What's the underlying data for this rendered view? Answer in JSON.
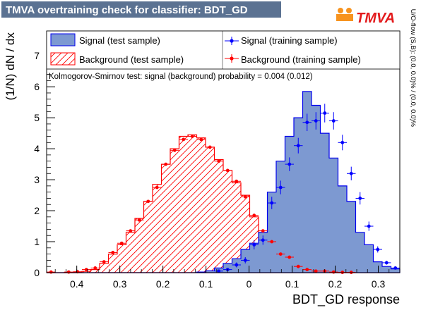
{
  "header": {
    "title": "TMVA overtraining check for classifier: BDT_GD",
    "logo_text": "TMVA"
  },
  "colors": {
    "title_bar": "#5b7292",
    "signal_fill": "#7d99d1",
    "signal_line": "#0000ee",
    "background_line": "#ff0000",
    "signal_points": "#0000ff",
    "background_points": "#ff0000",
    "logo_orange": "#f7931e",
    "logo_red": "#e31a1c"
  },
  "legend": {
    "signal_test": "Signal (test sample)",
    "background_test": "Background (test sample)",
    "signal_train": "Signal (training sample)",
    "background_train": "Background (training sample)"
  },
  "ks_text": "Kolmogorov-Smirnov test: signal (background) probability = 0.004 (0.012)",
  "overflow_text": "U/O-flow (S,B): (0.0, 0.0)% / (0.0, 0.0)%",
  "chart_data": {
    "type": "histogram",
    "title": "TMVA overtraining check for classifier: BDT_GD",
    "xlabel": "BDT_GD response",
    "ylabel": "(1/N) dN / dx",
    "xlim": [
      0.47,
      -0.35
    ],
    "ylim": [
      0,
      7.8
    ],
    "x_reversed": true,
    "xticks": [
      0.4,
      0.3,
      0.2,
      0.1,
      0,
      -0.1,
      -0.2,
      -0.3
    ],
    "xtick_labels": [
      "0.4",
      "0.3",
      "0.2",
      "0.1",
      "0",
      "0.1",
      "0.2",
      "0.3"
    ],
    "yticks": [
      0,
      1,
      2,
      3,
      4,
      5,
      6,
      7
    ],
    "bin_edges": [
      0.47,
      0.4495,
      0.429,
      0.4085,
      0.388,
      0.3675,
      0.347,
      0.3265,
      0.306,
      0.2855,
      0.265,
      0.2445,
      0.224,
      0.2035,
      0.183,
      0.1625,
      0.142,
      0.1215,
      0.101,
      0.0805,
      0.06,
      0.0395,
      0.019,
      -0.0015,
      -0.022,
      -0.0425,
      -0.063,
      -0.0835,
      -0.104,
      -0.1245,
      -0.145,
      -0.1655,
      -0.186,
      -0.2065,
      -0.227,
      -0.2475,
      -0.268,
      -0.2885,
      -0.309,
      -0.3295,
      -0.35
    ],
    "series": [
      {
        "name": "Signal (test sample)",
        "style": "filled",
        "values": [
          0,
          0,
          0,
          0,
          0,
          0,
          0,
          0,
          0,
          0,
          0,
          0,
          0,
          0,
          0,
          0,
          0,
          0.02,
          0.06,
          0.15,
          0.3,
          0.45,
          0.75,
          0.95,
          1.3,
          2.6,
          3.6,
          4.4,
          5.0,
          5.85,
          5.4,
          4.5,
          3.7,
          2.8,
          2.3,
          1.3,
          0.9,
          0.35,
          0.2,
          0.12
        ]
      },
      {
        "name": "Background (test sample)",
        "style": "hatched",
        "values": [
          0,
          0,
          0.01,
          0.01,
          0.04,
          0.1,
          0.3,
          0.6,
          0.9,
          1.3,
          1.75,
          2.3,
          2.85,
          3.5,
          4.0,
          4.4,
          4.45,
          4.35,
          4.05,
          3.65,
          3.3,
          2.9,
          2.5,
          1.8,
          1.3,
          0.95,
          0.65,
          0.5,
          0.25,
          0.15,
          0.05,
          0.02,
          0.01,
          0,
          0,
          0,
          0,
          0,
          0,
          0
        ]
      },
      {
        "name": "Signal (training sample)",
        "style": "points",
        "values": [
          0,
          0,
          0,
          0,
          0,
          0,
          0,
          0,
          0,
          0,
          0,
          0,
          0,
          0,
          0,
          0,
          0,
          0,
          0,
          0.05,
          0.1,
          0.25,
          0.4,
          0.9,
          1.05,
          2.25,
          2.75,
          3.5,
          4.1,
          4.85,
          4.9,
          5.15,
          4.9,
          4.2,
          3.2,
          2.4,
          1.5,
          0.75,
          0.32,
          0.15
        ]
      },
      {
        "name": "Background (training sample)",
        "style": "points",
        "values": [
          0.02,
          0,
          0.02,
          0.03,
          0.1,
          0.15,
          0.35,
          0.65,
          0.95,
          1.35,
          1.7,
          2.3,
          2.75,
          3.5,
          3.95,
          4.3,
          4.4,
          4.3,
          4.05,
          3.6,
          3.3,
          2.95,
          2.45,
          1.85,
          1.35,
          1.0,
          0.6,
          0.5,
          0.2,
          0.1,
          0.05,
          0.05,
          0.02,
          0.01,
          0.01,
          0,
          0,
          0,
          0,
          0
        ]
      }
    ],
    "signal_train_errors": [
      0,
      0,
      0,
      0,
      0,
      0,
      0,
      0,
      0,
      0,
      0,
      0,
      0,
      0,
      0,
      0,
      0,
      0,
      0,
      0.03,
      0.05,
      0.08,
      0.1,
      0.15,
      0.15,
      0.2,
      0.22,
      0.22,
      0.25,
      0.28,
      0.28,
      0.3,
      0.28,
      0.25,
      0.22,
      0.2,
      0.15,
      0.1,
      0.06,
      0.04
    ],
    "legend_position": "top",
    "grid": false
  }
}
